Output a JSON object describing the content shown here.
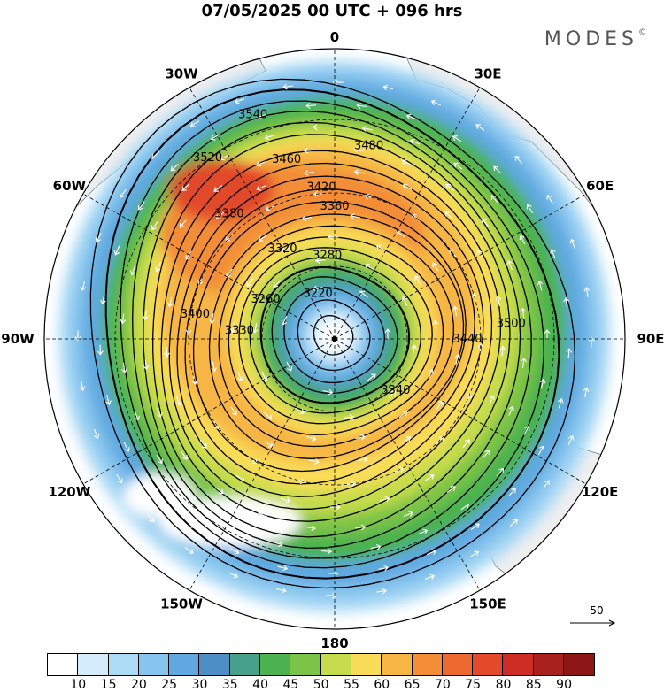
{
  "title": "07/05/2025  00 UTC  + 096 hrs",
  "brand": "MODES",
  "brand_mark": "©",
  "map": {
    "projection": "south-polar-stereographic",
    "longitude_labels": [
      {
        "text": "0",
        "lon": 0
      },
      {
        "text": "30E",
        "lon": 30
      },
      {
        "text": "60E",
        "lon": 60
      },
      {
        "text": "90E",
        "lon": 90
      },
      {
        "text": "120E",
        "lon": 120
      },
      {
        "text": "150E",
        "lon": 150
      },
      {
        "text": "180",
        "lon": 180
      },
      {
        "text": "150W",
        "lon": -150
      },
      {
        "text": "120W",
        "lon": -120
      },
      {
        "text": "90W",
        "lon": -90
      },
      {
        "text": "60W",
        "lon": -60
      },
      {
        "text": "30W",
        "lon": -30
      }
    ],
    "contour_labels": [
      "3220",
      "3260",
      "3280",
      "3320",
      "3330",
      "3340",
      "3360",
      "3380",
      "3400",
      "3420",
      "3440",
      "3460",
      "3480",
      "3500",
      "3520",
      "3540"
    ],
    "wind_reference": {
      "value": "50"
    }
  },
  "colorbar": {
    "ticks": [
      "10",
      "15",
      "20",
      "25",
      "30",
      "35",
      "40",
      "45",
      "50",
      "55",
      "60",
      "65",
      "70",
      "75",
      "80",
      "85",
      "90"
    ],
    "colors": [
      "#ffffff",
      "#d4ecfb",
      "#aedcf6",
      "#86c5ee",
      "#5fa8e0",
      "#4e8fc8",
      "#46a08a",
      "#4cb24f",
      "#7bc447",
      "#c6dc4c",
      "#f9dc58",
      "#f6b545",
      "#f38d38",
      "#ec6a2f",
      "#e24a2a",
      "#cd2d25",
      "#a8211f",
      "#8b1717"
    ]
  }
}
